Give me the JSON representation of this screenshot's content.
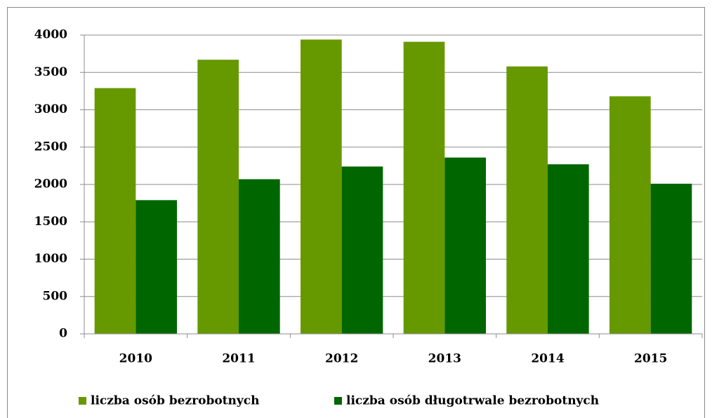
{
  "chart_data": {
    "type": "bar",
    "categories": [
      "2010",
      "2011",
      "2012",
      "2013",
      "2014",
      "2015"
    ],
    "series": [
      {
        "name": "liczba osób bezrobotnych",
        "color": "#669900",
        "values": [
          3290,
          3670,
          3940,
          3910,
          3580,
          3180
        ]
      },
      {
        "name": "liczba osób długotrwale bezrobotnych",
        "color": "#006600",
        "values": [
          1790,
          2070,
          2240,
          2360,
          2270,
          2010
        ]
      }
    ],
    "ylim": [
      0,
      4000
    ],
    "yticks": [
      0,
      500,
      1000,
      1500,
      2000,
      2500,
      3000,
      3500,
      4000
    ],
    "grid": true,
    "legend": "bottom"
  }
}
